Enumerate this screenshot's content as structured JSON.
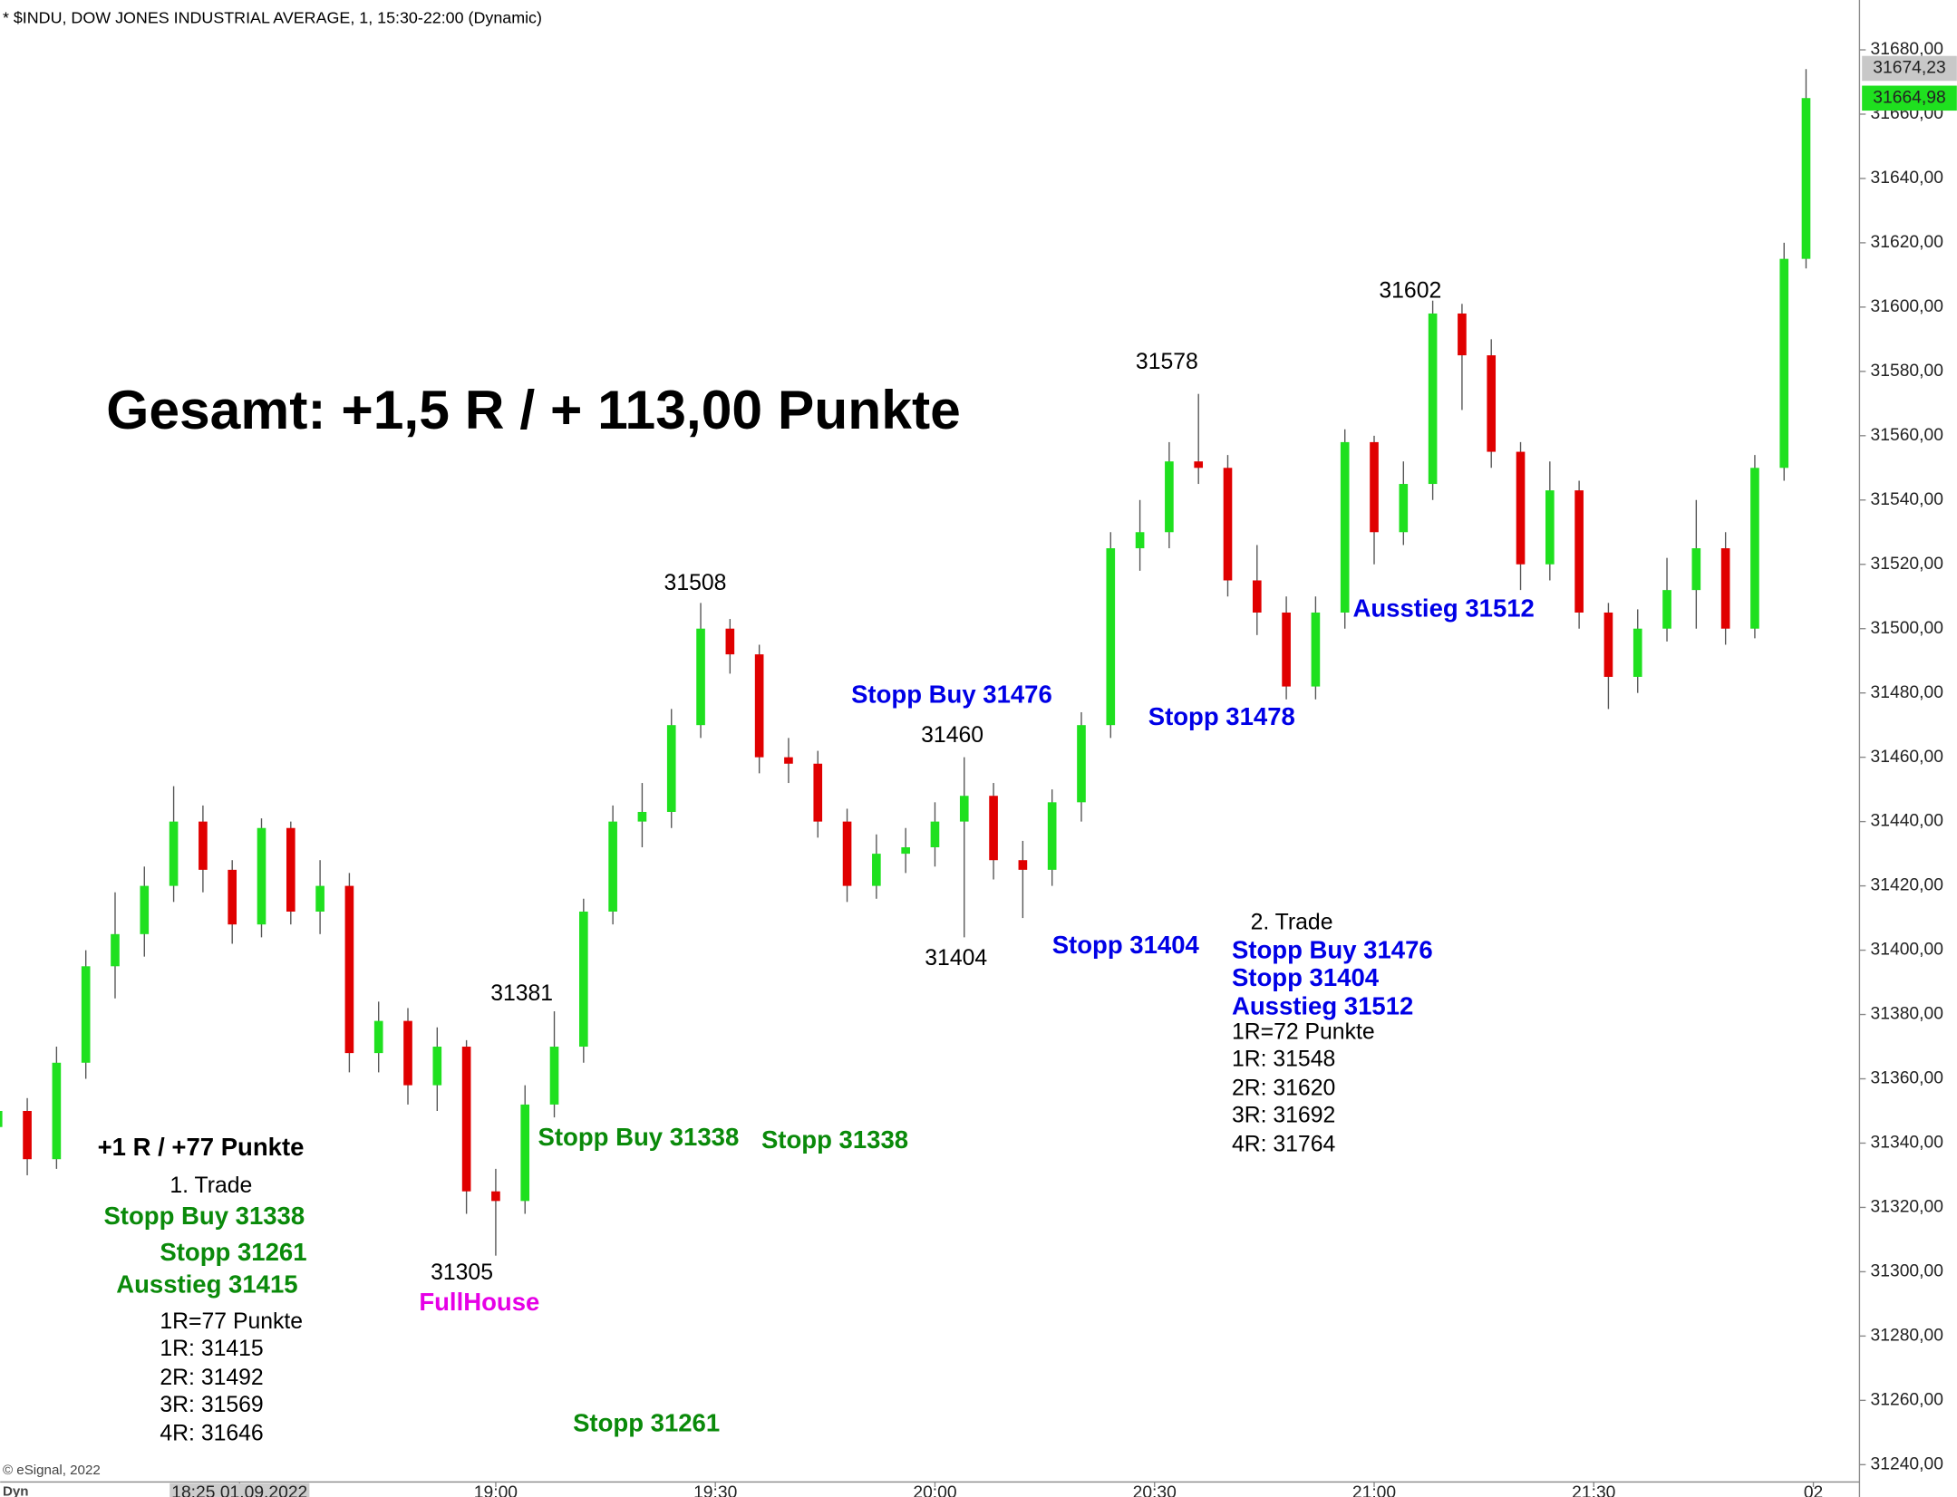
{
  "chart_data": {
    "type": "candlestick",
    "title": "* $INDU, DOW JONES INDUSTRIAL AVERAGE, 1, 15:30-22:00 (Dynamic)",
    "footer": "© eSignal, 2022",
    "mode_label": "Dyn",
    "x": [
      1072,
      1076,
      1080,
      1084,
      1088,
      1092,
      1096,
      1100,
      1104,
      1108,
      1112,
      1116,
      1120,
      1124,
      1128,
      1132,
      1136,
      1140,
      1144,
      1148,
      1152,
      1156,
      1160,
      1164,
      1168,
      1172,
      1176,
      1180,
      1184,
      1188,
      1192,
      1196,
      1200,
      1204,
      1208,
      1212,
      1216,
      1220,
      1224,
      1228,
      1232,
      1236,
      1240,
      1244,
      1248,
      1252,
      1256,
      1260,
      1264,
      1268,
      1272,
      1276,
      1280,
      1284,
      1288,
      1292,
      1296,
      1300,
      1304,
      1308,
      1312,
      1316,
      1319
    ],
    "open": [
      31345,
      31350,
      31335,
      31365,
      31395,
      31405,
      31420,
      31440,
      31425,
      31408,
      31438,
      31412,
      31420,
      31368,
      31378,
      31358,
      31370,
      31325,
      31322,
      31352,
      31370,
      31412,
      31440,
      31443,
      31470,
      31500,
      31492,
      31460,
      31458,
      31440,
      31420,
      31430,
      31432,
      31440,
      31448,
      31428,
      31425,
      31446,
      31470,
      31525,
      31530,
      31552,
      31550,
      31515,
      31505,
      31482,
      31505,
      31558,
      31530,
      31545,
      31598,
      31585,
      31555,
      31520,
      31543,
      31505,
      31485,
      31500,
      31512,
      31525,
      31500,
      31550,
      31615
    ],
    "high": [
      31356,
      31354,
      31370,
      31400,
      31418,
      31426,
      31451,
      31445,
      31428,
      31441,
      31440,
      31428,
      31424,
      31384,
      31382,
      31376,
      31372,
      31332,
      31358,
      31381,
      31416,
      31445,
      31452,
      31475,
      31508,
      31503,
      31495,
      31466,
      31462,
      31444,
      31436,
      31438,
      31446,
      31460,
      31452,
      31434,
      31450,
      31474,
      31530,
      31540,
      31558,
      31573,
      31554,
      31526,
      31510,
      31510,
      31562,
      31560,
      31552,
      31602,
      31601,
      31590,
      31558,
      31552,
      31546,
      31508,
      31506,
      31522,
      31540,
      31530,
      31554,
      31620,
      31674
    ],
    "low": [
      31338,
      31330,
      31332,
      31360,
      31385,
      31398,
      31415,
      31418,
      31402,
      31404,
      31408,
      31405,
      31362,
      31362,
      31352,
      31350,
      31318,
      31305,
      31318,
      31348,
      31365,
      31408,
      31432,
      31438,
      31466,
      31486,
      31455,
      31452,
      31435,
      31415,
      31416,
      31424,
      31426,
      31404,
      31422,
      31410,
      31420,
      31440,
      31466,
      31518,
      31525,
      31545,
      31510,
      31498,
      31478,
      31478,
      31500,
      31520,
      31526,
      31540,
      31568,
      31550,
      31512,
      31515,
      31500,
      31475,
      31480,
      31496,
      31500,
      31495,
      31497,
      31546,
      31612
    ],
    "close": [
      31350,
      31335,
      31365,
      31395,
      31405,
      31420,
      31440,
      31425,
      31408,
      31438,
      31412,
      31420,
      31368,
      31378,
      31358,
      31370,
      31325,
      31322,
      31352,
      31370,
      31412,
      31440,
      31443,
      31470,
      31500,
      31492,
      31460,
      31458,
      31440,
      31420,
      31430,
      31432,
      31440,
      31448,
      31428,
      31425,
      31446,
      31470,
      31525,
      31530,
      31552,
      31550,
      31515,
      31505,
      31482,
      31505,
      31558,
      31530,
      31545,
      31598,
      31585,
      31555,
      31520,
      31543,
      31505,
      31485,
      31500,
      31512,
      31525,
      31500,
      31550,
      31615,
      31665
    ],
    "up_color": "#1fe01f",
    "down_color": "#e00000",
    "xlim": [
      1072.3,
      1326.3
    ],
    "ylim": [
      31234.6,
      31695.5
    ],
    "xticks": [
      {
        "value": 1105,
        "label": "18:25 01.09.2022"
      },
      {
        "value": 1140,
        "label": "19:00"
      },
      {
        "value": 1170,
        "label": "19:30"
      },
      {
        "value": 1200,
        "label": "20:00"
      },
      {
        "value": 1230,
        "label": "20:30"
      },
      {
        "value": 1260,
        "label": "21:00"
      },
      {
        "value": 1290,
        "label": "21:30"
      },
      {
        "value": 1320,
        "label": "02"
      }
    ],
    "yticks": [
      {
        "value": 31240,
        "label": "31240,00"
      },
      {
        "value": 31260,
        "label": "31260,00"
      },
      {
        "value": 31280,
        "label": "31280,00"
      },
      {
        "value": 31300,
        "label": "31300,00"
      },
      {
        "value": 31320,
        "label": "31320,00"
      },
      {
        "value": 31340,
        "label": "31340,00"
      },
      {
        "value": 31360,
        "label": "31360,00"
      },
      {
        "value": 31380,
        "label": "31380,00"
      },
      {
        "value": 31400,
        "label": "31400,00"
      },
      {
        "value": 31420,
        "label": "31420,00"
      },
      {
        "value": 31440,
        "label": "31440,00"
      },
      {
        "value": 31460,
        "label": "31460,00"
      },
      {
        "value": 31480,
        "label": "31480,00"
      },
      {
        "value": 31500,
        "label": "31500,00"
      },
      {
        "value": 31520,
        "label": "31520,00"
      },
      {
        "value": 31540,
        "label": "31540,00"
      },
      {
        "value": 31560,
        "label": "31560,00"
      },
      {
        "value": 31580,
        "label": "31580,00"
      },
      {
        "value": 31600,
        "label": "31600,00"
      },
      {
        "value": 31620,
        "label": "31620,00"
      },
      {
        "value": 31640,
        "label": "31640,00"
      },
      {
        "value": 31660,
        "label": "31660,00"
      },
      {
        "value": 31680,
        "label": "31680,00"
      }
    ],
    "high_marker": {
      "value": 31674.23,
      "label": "31674,23"
    },
    "last_marker": {
      "value": 31664.98,
      "label": "31664,98",
      "color": "#1fe01f"
    },
    "annotations": [
      "Gesamt: +1,5 R / + 113,00 Punkte",
      "31508",
      "31578",
      "31602",
      "31460",
      "31404",
      "31381",
      "31305",
      "FullHouse",
      "Stopp Buy 31476",
      "Stopp 31478",
      "Ausstieg 31512",
      "Stopp 31404",
      "2. Trade",
      "Stopp Buy 31476",
      "Stopp 31404",
      "Ausstieg 31512",
      "1R=72 Punkte",
      "1R: 31548",
      "2R: 31620",
      "3R: 31692",
      "4R: 31764",
      "Stopp Buy 31338",
      "Stopp 31338",
      "+1 R / +77 Punkte",
      "1. Trade",
      "Stopp Buy 31338",
      "Stopp 31261",
      "Ausstieg 31415",
      "1R=77 Punkte",
      "1R: 31415",
      "2R: 31492",
      "3R: 31569",
      "4R: 31646",
      "Stopp 31261"
    ]
  }
}
